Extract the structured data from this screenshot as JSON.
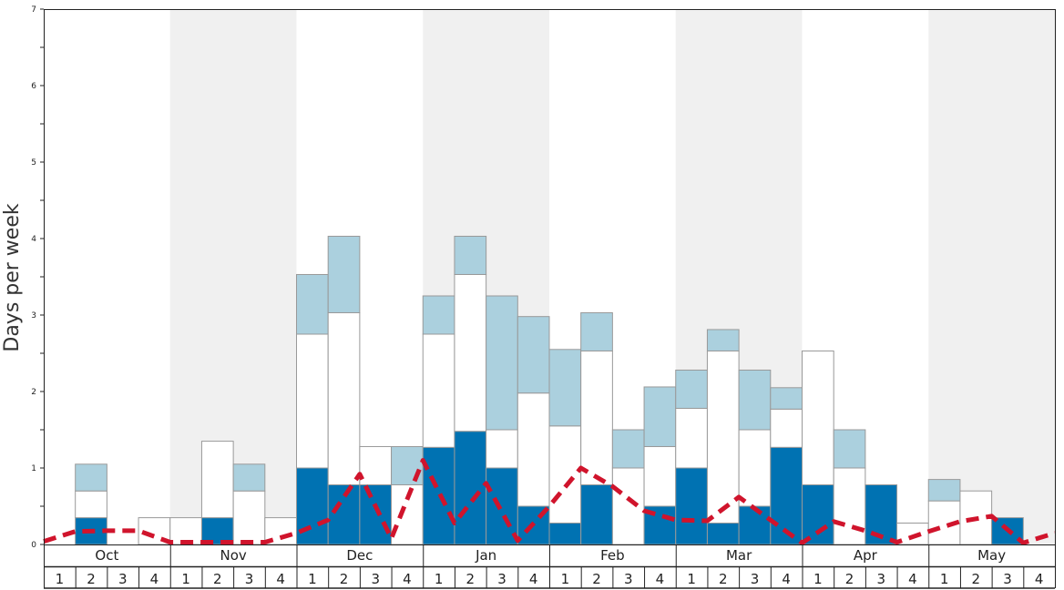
{
  "chart_data": {
    "type": "bar",
    "ylabel": "Days per week",
    "ylim": [
      0,
      7
    ],
    "yticks": [
      0,
      1,
      2,
      3,
      4,
      5,
      6,
      7
    ],
    "grid": false,
    "months": [
      "Oct",
      "Nov",
      "Dec",
      "Jan",
      "Feb",
      "Mar",
      "Apr",
      "May"
    ],
    "week_labels": [
      "1",
      "2",
      "3",
      "4"
    ],
    "colors": {
      "dark": "#0072b2",
      "white": "#ffffff",
      "light": "#abd0de",
      "line": "#d0142c",
      "band": "#f0f0f0"
    },
    "series": [
      {
        "values": [
          0,
          0.35,
          0,
          0,
          0,
          0.35,
          0,
          0,
          1.0,
          0.78,
          0.78,
          0,
          1.27,
          1.48,
          1.0,
          0.5,
          0.28,
          0.78,
          0,
          0.5,
          1.0,
          0.28,
          0.5,
          1.27,
          0.78,
          0,
          0.78,
          0,
          0,
          0,
          0.35,
          0
        ]
      },
      {
        "values": [
          0,
          0.35,
          0,
          0.35,
          0.35,
          1.0,
          0.7,
          0.35,
          1.75,
          2.25,
          0.5,
          0.78,
          1.48,
          2.05,
          0.5,
          1.48,
          1.27,
          1.75,
          1.0,
          0.78,
          0.78,
          2.25,
          1.0,
          0.5,
          1.75,
          1.0,
          0,
          0.28,
          0.57,
          0.7,
          0,
          0
        ]
      },
      {
        "values": [
          0,
          0.35,
          0,
          0,
          0,
          0,
          0.35,
          0,
          0.78,
          1.0,
          0,
          0.5,
          0.5,
          0.5,
          1.75,
          1.0,
          1.0,
          0.5,
          0.5,
          0.78,
          0.5,
          0.28,
          0.78,
          0.28,
          0,
          0.5,
          0,
          0,
          0.28,
          0,
          0,
          0
        ]
      }
    ],
    "line_values": [
      0.04,
      0.17,
      0.18,
      0.18,
      0.03,
      0.03,
      0.03,
      0.03,
      0.15,
      0.32,
      0.92,
      0.08,
      1.1,
      0.28,
      0.8,
      0.05,
      0.5,
      1.0,
      0.76,
      0.44,
      0.32,
      0.31,
      0.62,
      0.32,
      0.02,
      0.3,
      0.18,
      0.03,
      0.17,
      0.3,
      0.37,
      0.02,
      0.15
    ]
  }
}
